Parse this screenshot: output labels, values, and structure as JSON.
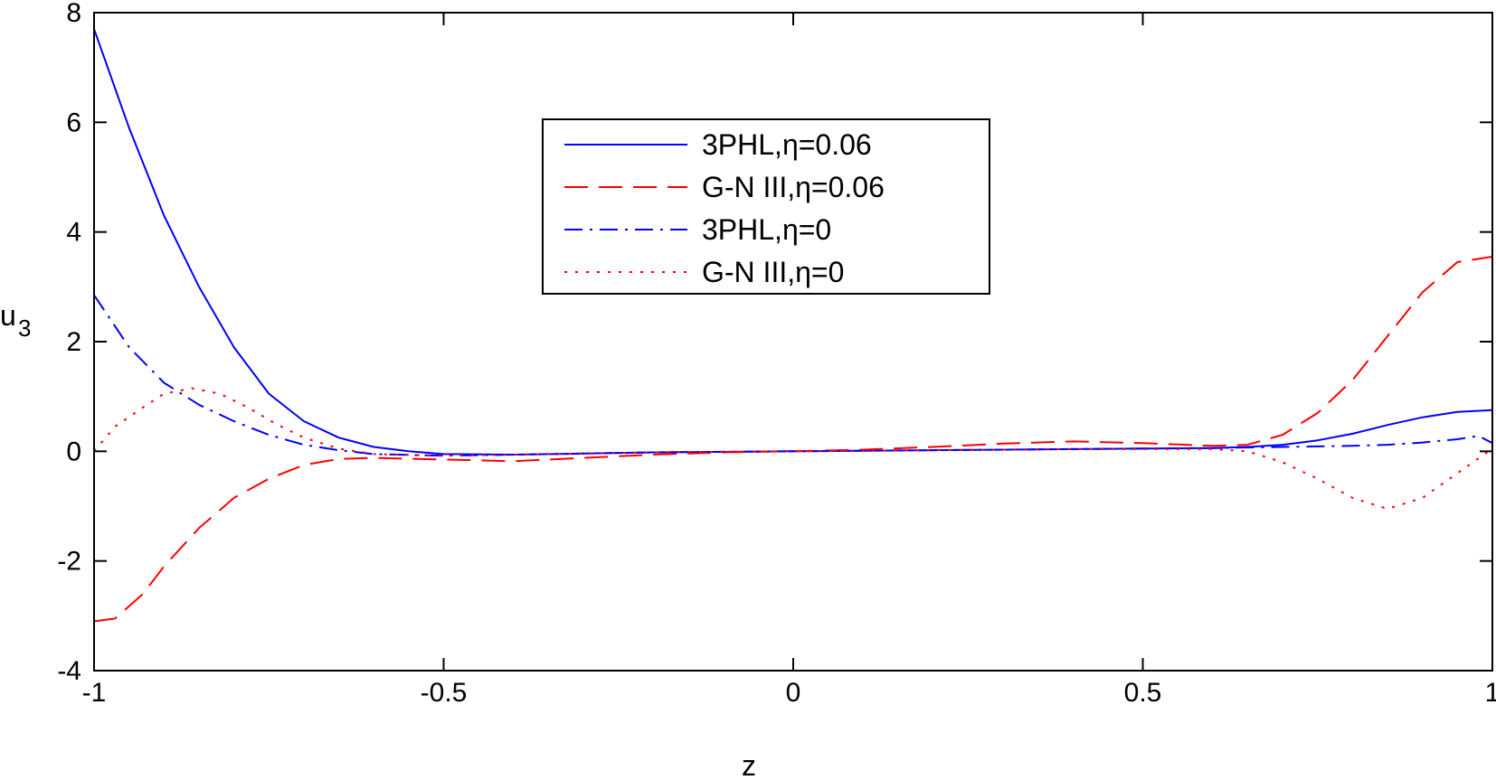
{
  "chart_data": {
    "type": "line",
    "title": "",
    "xlabel": "z",
    "ylabel": "u",
    "ylabel_subscript": "3",
    "xlim": [
      -1,
      1
    ],
    "ylim": [
      -4,
      8
    ],
    "xticks": [
      -1,
      -0.5,
      0,
      0.5,
      1
    ],
    "xtick_labels": [
      "-1",
      "-0.5",
      "0",
      "0.5",
      "1"
    ],
    "yticks": [
      -4,
      -2,
      0,
      2,
      4,
      6,
      8
    ],
    "ytick_labels": [
      "-4",
      "-2",
      "0",
      "2",
      "4",
      "6",
      "8"
    ],
    "grid": false,
    "legend_position": "top-center",
    "series": [
      {
        "name": "3PHL,η=0.06",
        "color": "#0000ff",
        "style": "solid",
        "x": [
          -1.0,
          -0.95,
          -0.9,
          -0.85,
          -0.8,
          -0.75,
          -0.7,
          -0.65,
          -0.6,
          -0.55,
          -0.5,
          -0.4,
          -0.3,
          -0.2,
          0.0,
          0.2,
          0.4,
          0.6,
          0.65,
          0.7,
          0.75,
          0.8,
          0.85,
          0.9,
          0.95,
          1.0
        ],
        "y": [
          7.7,
          5.9,
          4.3,
          3.0,
          1.9,
          1.05,
          0.55,
          0.25,
          0.08,
          0.0,
          -0.05,
          -0.06,
          -0.04,
          -0.02,
          0.0,
          0.02,
          0.04,
          0.06,
          0.08,
          0.12,
          0.2,
          0.32,
          0.48,
          0.62,
          0.72,
          0.75
        ]
      },
      {
        "name": "G-N III,η=0.06",
        "color": "#ff0000",
        "style": "dashed",
        "x": [
          -1.0,
          -0.97,
          -0.93,
          -0.9,
          -0.85,
          -0.8,
          -0.75,
          -0.7,
          -0.65,
          -0.6,
          -0.5,
          -0.4,
          -0.3,
          -0.2,
          -0.1,
          0.0,
          0.1,
          0.2,
          0.3,
          0.4,
          0.5,
          0.6,
          0.65,
          0.7,
          0.75,
          0.8,
          0.85,
          0.9,
          0.95,
          1.0
        ],
        "y": [
          -3.1,
          -3.05,
          -2.6,
          -2.1,
          -1.4,
          -0.85,
          -0.5,
          -0.25,
          -0.14,
          -0.12,
          -0.15,
          -0.18,
          -0.12,
          -0.06,
          -0.02,
          0.0,
          0.03,
          0.08,
          0.14,
          0.18,
          0.15,
          0.1,
          0.12,
          0.3,
          0.7,
          1.3,
          2.1,
          2.9,
          3.45,
          3.55
        ]
      },
      {
        "name": "3PHL,η=0",
        "color": "#0000ff",
        "style": "dashdot",
        "x": [
          -1.0,
          -0.95,
          -0.9,
          -0.85,
          -0.8,
          -0.75,
          -0.7,
          -0.65,
          -0.6,
          -0.5,
          -0.4,
          -0.3,
          -0.2,
          0.0,
          0.2,
          0.4,
          0.6,
          0.7,
          0.8,
          0.85,
          0.9,
          0.95,
          0.98,
          1.0
        ],
        "y": [
          2.85,
          1.9,
          1.25,
          0.85,
          0.55,
          0.3,
          0.12,
          0.02,
          -0.05,
          -0.08,
          -0.06,
          -0.04,
          -0.02,
          0.0,
          0.02,
          0.04,
          0.06,
          0.08,
          0.1,
          0.12,
          0.16,
          0.22,
          0.28,
          0.15
        ]
      },
      {
        "name": "G-N III,η=0",
        "color": "#ff0000",
        "style": "dotted",
        "x": [
          -1.0,
          -0.97,
          -0.93,
          -0.9,
          -0.86,
          -0.82,
          -0.78,
          -0.74,
          -0.7,
          -0.65,
          -0.6,
          -0.5,
          -0.4,
          -0.3,
          -0.2,
          0.0,
          0.2,
          0.4,
          0.6,
          0.65,
          0.7,
          0.75,
          0.8,
          0.85,
          0.9,
          0.95,
          1.0
        ],
        "y": [
          0.0,
          0.45,
          0.8,
          1.05,
          1.15,
          1.05,
          0.8,
          0.5,
          0.25,
          0.05,
          -0.05,
          -0.08,
          -0.06,
          -0.04,
          -0.02,
          0.0,
          0.02,
          0.04,
          0.04,
          0.0,
          -0.2,
          -0.5,
          -0.85,
          -1.05,
          -0.85,
          -0.4,
          0.05
        ]
      }
    ]
  }
}
